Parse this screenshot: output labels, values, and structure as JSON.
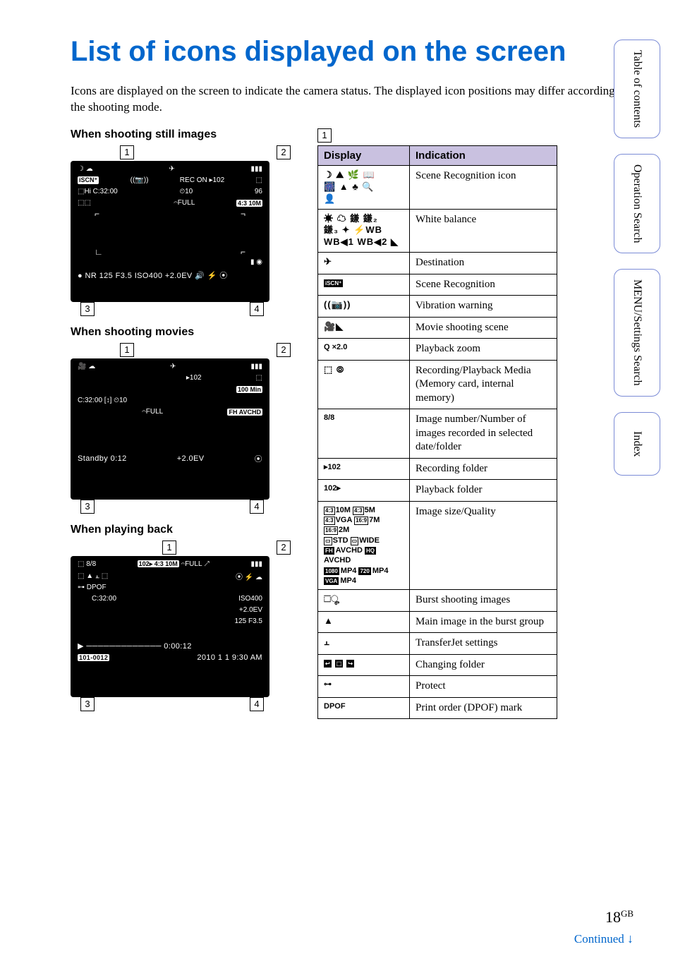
{
  "title": "List of icons displayed on the screen",
  "intro": "Icons are displayed on the screen to indicate the camera status. The displayed icon positions may differ according to the shooting mode.",
  "sections": {
    "still": "When shooting still images",
    "movie": "When shooting movies",
    "play": "When playing back"
  },
  "callouts": {
    "c1": "1",
    "c2": "2",
    "c3": "3",
    "c4": "4"
  },
  "shot_still": {
    "top_left": "☽ ☁",
    "top_mid": "✈",
    "scn": "iSCN⁺",
    "vib": "((📷))",
    "rec": "REC ON  ▸102",
    "hi": "⬚Hi  C:32:00",
    "timer": "⏲10",
    "n96": "96",
    "ratio": "4:3 10M",
    "full": "𝄐FULL",
    "bottom": "●  NR  125   F3.5   ISO400  +2.0EV  🔊 ⚡   ⦿"
  },
  "shot_movie": {
    "top_left": "🎥  ☁",
    "top_mid": "✈",
    "folder": "▸102",
    "min": "100 Min",
    "time": "C:32:00   [↕]  ⏲10",
    "full": "𝄐FULL",
    "fh": "FH AVCHD",
    "standby": "Standby   0:12",
    "ev": "+2.0EV",
    "meter": "⦿"
  },
  "shot_play": {
    "top_left": "⬚ 8/8",
    "folder": "102▸ 4:3 10M",
    "full": "𝄐FULL  ↗",
    "row2l": "⬚ ▲        ⫠ ⬚",
    "row2r": "⦿ ⚡ ☁",
    "dpof": "⊶ DPOF",
    "time": "C:32:00",
    "iso": "ISO400",
    "ev": "+2.0EV",
    "shutter": "125   F3.5",
    "progress": "▶  ─────────────  0:00:12",
    "file": "101-0012",
    "date": "2010  1  1  9:30 AM"
  },
  "table": {
    "section_num": "1",
    "h_display": "Display",
    "h_indication": "Indication",
    "rows": [
      {
        "disp_html": "<span class='icon-glyphs'>☽ ⛰ 🌿 📖<br>🎆 ▲ ♣ 🔍<br>👤</span>",
        "ind": "Scene Recognition icon"
      },
      {
        "disp_html": "<span class='icon-glyphs'>☀ ☁ 鎌 鎌₂<br>鎌₃ ✦ ⚡WB<br>WB◀1 WB◀2 ◣</span>",
        "ind": "White balance"
      },
      {
        "disp_html": "<span class='icon-glyphs'>✈</span>",
        "ind": "Destination"
      },
      {
        "disp_html": "<span class='blackb'>iSCN⁺</span>",
        "ind": "Scene Recognition"
      },
      {
        "disp_html": "<span class='icon-glyphs'>((📷))</span>",
        "ind": "Vibration warning"
      },
      {
        "disp_html": "<span class='icon-glyphs'>🎥◣</span>",
        "ind": "Movie shooting scene"
      },
      {
        "disp_html": "<b>Q ×2.0</b>",
        "ind": "Playback zoom"
      },
      {
        "disp_html": "<span class='icon-glyphs'>⬚ ⦾</span>",
        "ind": "Recording/Playback Media (Memory card, internal memory)"
      },
      {
        "disp_html": "<b>8/8</b>",
        "ind": "Image number/Number of images recorded in selected date/folder"
      },
      {
        "disp_html": "<b>▸102</b>",
        "ind": "Recording folder"
      },
      {
        "disp_html": "<b>102▸</b>",
        "ind": "Playback folder"
      },
      {
        "disp_html": "<span class='smallb'>4:3</span>10M <span class='smallb'>4:3</span>5M<br><span class='smallb'>4:3</span>VGA <span class='smallb'>16:9</span>7M<br><span class='smallb'>16:9</span>2M<br><span class='smallb'>▭</span>STD <span class='smallb'>▭</span>WIDE<br><span class='blackb'>FH</span>AVCHD <span class='blackb'>HQ</span>AVCHD<br><span class='blackb'>1080</span>MP4 <span class='blackb'>720</span>MP4<br><span class='blackb'>VGA</span>MP4",
        "ind": "Image size/Quality"
      },
      {
        "disp_html": "<span class='icon-glyphs'>⬚ೄ</span>",
        "ind": "Burst shooting images"
      },
      {
        "disp_html": "<span class='icon-glyphs'>▲</span>",
        "ind": "Main image in the burst group"
      },
      {
        "disp_html": "<span class='icon-glyphs'>⫠</span>",
        "ind": "TransferJet settings"
      },
      {
        "disp_html": "<span class='blackb'>↩</span> <span class='blackb'>⬚</span> <span class='blackb'>↪</span>",
        "ind": "Changing folder"
      },
      {
        "disp_html": "<b>⊶</b>",
        "ind": "Protect"
      },
      {
        "disp_html": "<b>DPOF</b>",
        "ind": "Print order (DPOF) mark"
      }
    ]
  },
  "tabs": {
    "toc": "Table of\ncontents",
    "op": "Operation\nSearch",
    "menu": "MENU/Settings\nSearch",
    "index": "Index"
  },
  "page_number": "18",
  "page_suffix": "GB",
  "continued": "Continued ",
  "continued_arrow": "↓"
}
